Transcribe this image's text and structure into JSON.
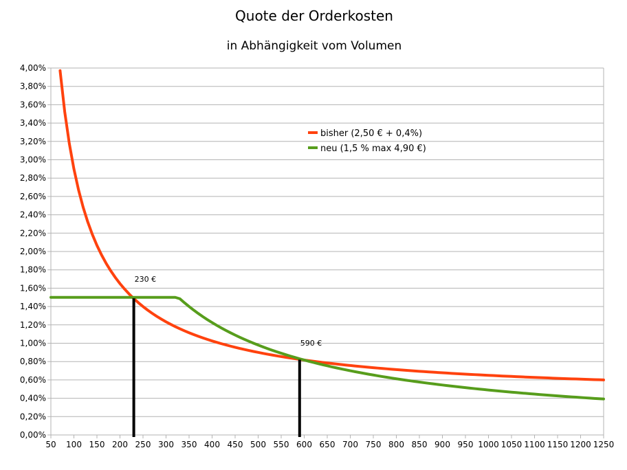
{
  "chart_data": {
    "type": "line",
    "title": "Quote der Orderkosten",
    "subtitle": "in Abhängigkeit vom Volumen",
    "x_ticks": [
      "50",
      "100",
      "150",
      "200",
      "250",
      "300",
      "350",
      "400",
      "450",
      "500",
      "550",
      "600",
      "650",
      "700",
      "750",
      "800",
      "850",
      "900",
      "950",
      "1000",
      "1050",
      "1100",
      "1150",
      "1200",
      "1250"
    ],
    "y_ticks": [
      "0,00%",
      "0,20%",
      "0,40%",
      "0,60%",
      "0,80%",
      "1,00%",
      "1,20%",
      "1,40%",
      "1,60%",
      "1,80%",
      "2,00%",
      "2,20%",
      "2,40%",
      "2,60%",
      "2,80%",
      "3,00%",
      "3,20%",
      "3,40%",
      "3,60%",
      "3,80%",
      "4,00%"
    ],
    "xlim": [
      50,
      1250
    ],
    "ylim": [
      0,
      4.0
    ],
    "grid": true,
    "legend_position": "top-right",
    "series": [
      {
        "name": "bisher (2,50 € + 0,4%)",
        "color": "#ff420e",
        "formula": "fixed_plus_percent",
        "fixed_fee": 2.5,
        "percent": 0.4,
        "x_start": 70,
        "x_end": 1250,
        "x_step": 10
      },
      {
        "name": "neu (1,5 % max 4,90 €)",
        "color": "#579d1c",
        "formula": "percent_with_cap",
        "percent": 1.5,
        "cap": 4.9,
        "x_start": 50,
        "x_end": 1250,
        "x_step": 10
      }
    ],
    "annotations": [
      {
        "x": 230,
        "y": 1.49,
        "label": "230 €"
      },
      {
        "x": 590,
        "y": 0.82,
        "label": "590 €"
      }
    ]
  }
}
